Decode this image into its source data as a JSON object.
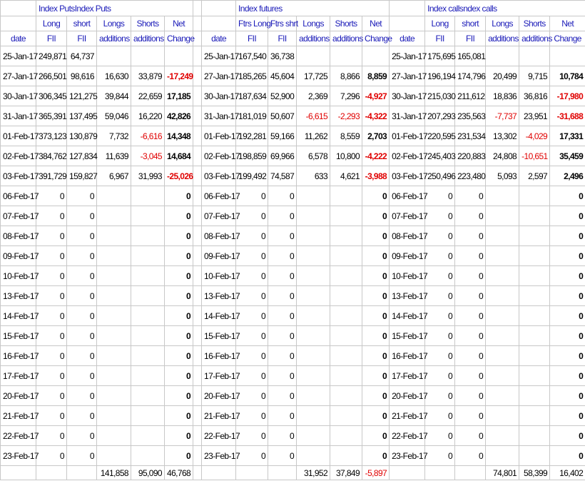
{
  "blocks": [
    {
      "title": "Index PutsIndex Puts",
      "header": [
        [
          null,
          "Long",
          "short",
          "Longs",
          "Shorts",
          "Net"
        ],
        [
          "date",
          "FII",
          "FII",
          "additions",
          "additions",
          "Change"
        ]
      ],
      "rows": [
        [
          "25-Jan-17",
          "249,871",
          "64,737",
          null,
          null,
          null
        ],
        [
          "27-Jan-17",
          "266,501",
          "98,616",
          "16,630",
          "33,879",
          "-17,249"
        ],
        [
          "30-Jan-17",
          "306,345",
          "121,275",
          "39,844",
          "22,659",
          "17,185"
        ],
        [
          "31-Jan-17",
          "365,391",
          "137,495",
          "59,046",
          "16,220",
          "42,826"
        ],
        [
          "01-Feb-17",
          "373,123",
          "130,879",
          "7,732",
          "-6,616",
          "14,348"
        ],
        [
          "02-Feb-17",
          "384,762",
          "127,834",
          "11,639",
          "-3,045",
          "14,684"
        ],
        [
          "03-Feb-17",
          "391,729",
          "159,827",
          "6,967",
          "31,993",
          "-25,026"
        ],
        [
          "06-Feb-17",
          "0",
          "0",
          null,
          null,
          "0"
        ],
        [
          "07-Feb-17",
          "0",
          "0",
          null,
          null,
          "0"
        ],
        [
          "08-Feb-17",
          "0",
          "0",
          null,
          null,
          "0"
        ],
        [
          "09-Feb-17",
          "0",
          "0",
          null,
          null,
          "0"
        ],
        [
          "10-Feb-17",
          "0",
          "0",
          null,
          null,
          "0"
        ],
        [
          "13-Feb-17",
          "0",
          "0",
          null,
          null,
          "0"
        ],
        [
          "14-Feb-17",
          "0",
          "0",
          null,
          null,
          "0"
        ],
        [
          "15-Feb-17",
          "0",
          "0",
          null,
          null,
          "0"
        ],
        [
          "16-Feb-17",
          "0",
          "0",
          null,
          null,
          "0"
        ],
        [
          "17-Feb-17",
          "0",
          "0",
          null,
          null,
          "0"
        ],
        [
          "20-Feb-17",
          "0",
          "0",
          null,
          null,
          "0"
        ],
        [
          "21-Feb-17",
          "0",
          "0",
          null,
          null,
          "0"
        ],
        [
          "22-Feb-17",
          "0",
          "0",
          null,
          null,
          "0"
        ],
        [
          "23-Feb-17",
          "0",
          "0",
          null,
          null,
          "0"
        ]
      ],
      "totals": [
        null,
        null,
        null,
        "141,858",
        "95,090",
        "46,768"
      ]
    },
    {
      "title": "Index futures",
      "header": [
        [
          null,
          "Ftrs Long",
          "Ftrs shrt",
          "Longs",
          "Shorts",
          "Net"
        ],
        [
          "date",
          "FII",
          "FII",
          "additions",
          "additions",
          "Change"
        ]
      ],
      "rows": [
        [
          "25-Jan-17",
          "167,540",
          "36,738",
          null,
          null,
          null
        ],
        [
          "27-Jan-17",
          "185,265",
          "45,604",
          "17,725",
          "8,866",
          "8,859"
        ],
        [
          "30-Jan-17",
          "187,634",
          "52,900",
          "2,369",
          "7,296",
          "-4,927"
        ],
        [
          "31-Jan-17",
          "181,019",
          "50,607",
          "-6,615",
          "-2,293",
          "-4,322"
        ],
        [
          "01-Feb-17",
          "192,281",
          "59,166",
          "11,262",
          "8,559",
          "2,703"
        ],
        [
          "02-Feb-17",
          "198,859",
          "69,966",
          "6,578",
          "10,800",
          "-4,222"
        ],
        [
          "03-Feb-17",
          "199,492",
          "74,587",
          "633",
          "4,621",
          "-3,988"
        ],
        [
          "06-Feb-17",
          "0",
          "0",
          null,
          null,
          "0"
        ],
        [
          "07-Feb-17",
          "0",
          "0",
          null,
          null,
          "0"
        ],
        [
          "08-Feb-17",
          "0",
          "0",
          null,
          null,
          "0"
        ],
        [
          "09-Feb-17",
          "0",
          "0",
          null,
          null,
          "0"
        ],
        [
          "10-Feb-17",
          "0",
          "0",
          null,
          null,
          "0"
        ],
        [
          "13-Feb-17",
          "0",
          "0",
          null,
          null,
          "0"
        ],
        [
          "14-Feb-17",
          "0",
          "0",
          null,
          null,
          "0"
        ],
        [
          "15-Feb-17",
          "0",
          "0",
          null,
          null,
          "0"
        ],
        [
          "16-Feb-17",
          "0",
          "0",
          null,
          null,
          "0"
        ],
        [
          "17-Feb-17",
          "0",
          "0",
          null,
          null,
          "0"
        ],
        [
          "20-Feb-17",
          "0",
          "0",
          null,
          null,
          "0"
        ],
        [
          "21-Feb-17",
          "0",
          "0",
          null,
          null,
          "0"
        ],
        [
          "22-Feb-17",
          "0",
          "0",
          null,
          null,
          "0"
        ],
        [
          "23-Feb-17",
          "0",
          "0",
          null,
          null,
          "0"
        ]
      ],
      "totals": [
        null,
        null,
        null,
        "31,952",
        "37,849",
        "-5,897"
      ]
    },
    {
      "title": "Index callsndex calls",
      "header": [
        [
          null,
          "Long",
          "short",
          "Longs",
          "Shorts",
          "Net"
        ],
        [
          "date",
          "FII",
          "FII",
          "additions",
          "additions",
          "Change"
        ]
      ],
      "rows": [
        [
          "25-Jan-17",
          "175,695",
          "165,081",
          null,
          null,
          null
        ],
        [
          "27-Jan-17",
          "196,194",
          "174,796",
          "20,499",
          "9,715",
          "10,784"
        ],
        [
          "30-Jan-17",
          "215,030",
          "211,612",
          "18,836",
          "36,816",
          "-17,980"
        ],
        [
          "31-Jan-17",
          "207,293",
          "235,563",
          "-7,737",
          "23,951",
          "-31,688"
        ],
        [
          "01-Feb-17",
          "220,595",
          "231,534",
          "13,302",
          "-4,029",
          "17,331"
        ],
        [
          "02-Feb-17",
          "245,403",
          "220,883",
          "24,808",
          "-10,651",
          "35,459"
        ],
        [
          "03-Feb-17",
          "250,496",
          "223,480",
          "5,093",
          "2,597",
          "2,496"
        ],
        [
          "06-Feb-17",
          "0",
          "0",
          null,
          null,
          "0"
        ],
        [
          "07-Feb-17",
          "0",
          "0",
          null,
          null,
          "0"
        ],
        [
          "08-Feb-17",
          "0",
          "0",
          null,
          null,
          "0"
        ],
        [
          "09-Feb-17",
          "0",
          "0",
          null,
          null,
          "0"
        ],
        [
          "10-Feb-17",
          "0",
          "0",
          null,
          null,
          "0"
        ],
        [
          "13-Feb-17",
          "0",
          "0",
          null,
          null,
          "0"
        ],
        [
          "14-Feb-17",
          "0",
          "0",
          null,
          null,
          "0"
        ],
        [
          "15-Feb-17",
          "0",
          "0",
          null,
          null,
          "0"
        ],
        [
          "16-Feb-17",
          "0",
          "0",
          null,
          null,
          "0"
        ],
        [
          "17-Feb-17",
          "0",
          "0",
          null,
          null,
          "0"
        ],
        [
          "20-Feb-17",
          "0",
          "0",
          null,
          null,
          "0"
        ],
        [
          "21-Feb-17",
          "0",
          "0",
          null,
          null,
          "0"
        ],
        [
          "22-Feb-17",
          "0",
          "0",
          null,
          null,
          "0"
        ],
        [
          "23-Feb-17",
          "0",
          "0",
          null,
          null,
          "0"
        ]
      ],
      "totals": [
        null,
        null,
        null,
        "74,801",
        "58,399",
        "16,402"
      ]
    }
  ]
}
